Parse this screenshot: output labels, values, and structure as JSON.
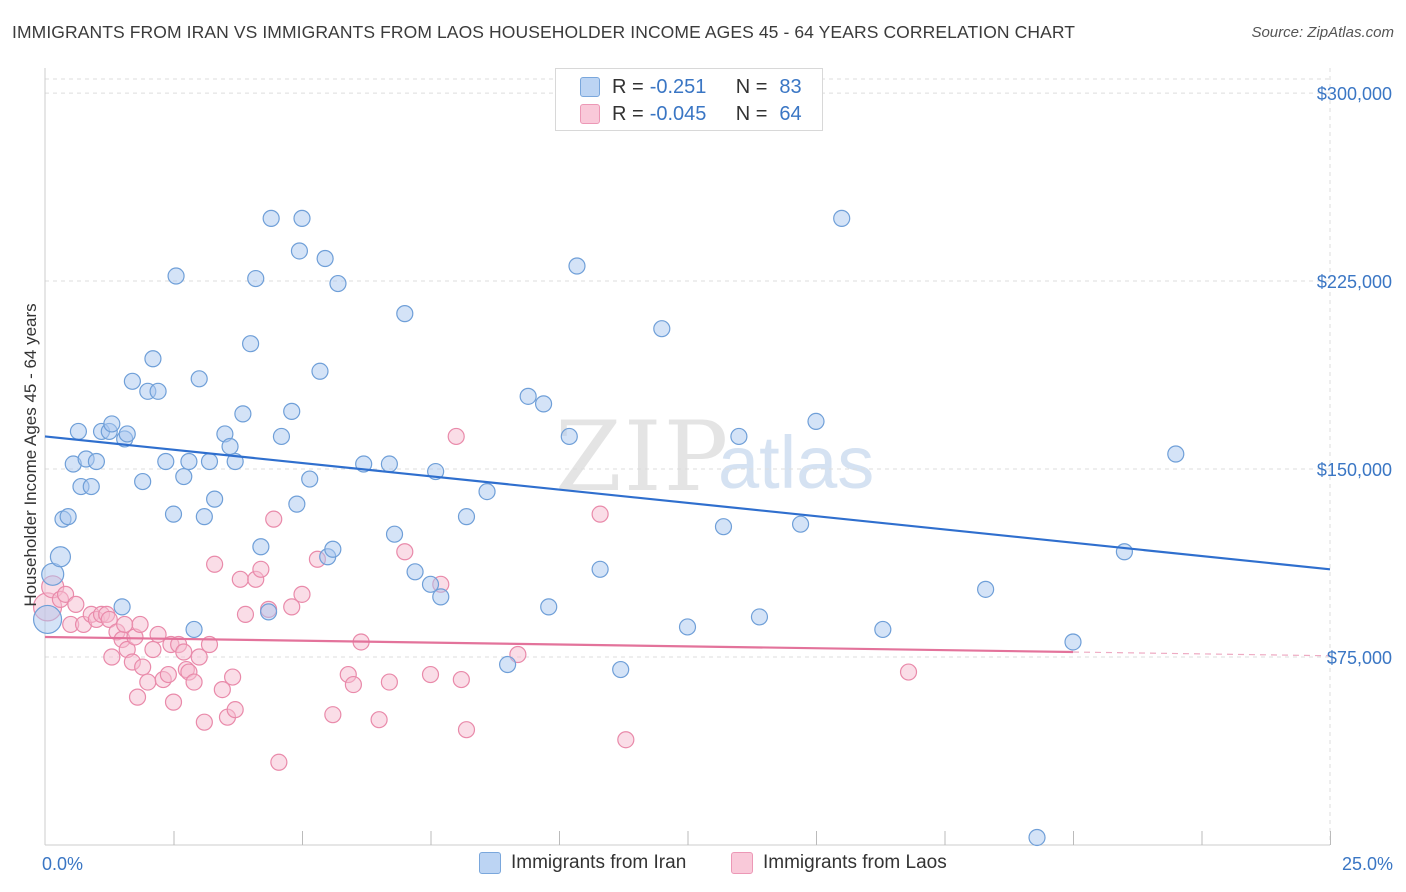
{
  "title": "IMMIGRANTS FROM IRAN VS IMMIGRANTS FROM LAOS HOUSEHOLDER INCOME AGES 45 - 64 YEARS CORRELATION CHART",
  "source": "Source: ZipAtlas.com",
  "watermark": {
    "zip": "ZIP",
    "atlas": "atlas"
  },
  "colors": {
    "iran_fill": "#aac8ef",
    "iran_stroke": "#6f9fd8",
    "iran_line": "#2f6fce",
    "laos_fill": "#f6bcd0",
    "laos_stroke": "#e98aaa",
    "laos_line": "#e3739b",
    "axis_text": "#3a76c4",
    "grid": "#dddddd"
  },
  "legend": {
    "iran": {
      "r_label": "R =",
      "r_value": "-0.251",
      "n_label": "N =",
      "n_value": "83"
    },
    "laos": {
      "r_label": "R =",
      "r_value": "-0.045",
      "n_label": "N =",
      "n_value": "64"
    }
  },
  "bottom_legend": {
    "iran": "Immigrants from Iran",
    "laos": "Immigrants from Laos"
  },
  "chart_data": {
    "type": "scatter",
    "xlabel": "",
    "ylabel": "Householder Income Ages 45 - 64 years",
    "xlim": [
      0,
      25
    ],
    "ylim": [
      0,
      310000
    ],
    "x_tick_labels": [
      {
        "value": 0,
        "label": "0.0%"
      },
      {
        "value": 25,
        "label": "25.0%"
      }
    ],
    "y_ticks": [
      {
        "value": 75000,
        "label": "$75,000"
      },
      {
        "value": 150000,
        "label": "$150,000"
      },
      {
        "value": 225000,
        "label": "$225,000"
      },
      {
        "value": 300000,
        "label": "$300,000"
      }
    ],
    "grid": true,
    "legend_position": "top-center",
    "series": [
      {
        "name": "Immigrants from Iran",
        "trend": {
          "x": [
            0,
            25
          ],
          "y": [
            163000,
            110000
          ]
        },
        "points": [
          [
            0.05,
            90000,
            14
          ],
          [
            0.15,
            108000,
            11
          ],
          [
            0.3,
            115000,
            10
          ],
          [
            0.35,
            130000,
            8
          ],
          [
            0.45,
            131000,
            8
          ],
          [
            0.55,
            152000,
            8
          ],
          [
            0.65,
            165000,
            8
          ],
          [
            0.7,
            143000,
            8
          ],
          [
            0.8,
            154000,
            8
          ],
          [
            0.9,
            143000,
            8
          ],
          [
            1.0,
            153000,
            8
          ],
          [
            1.1,
            165000,
            8
          ],
          [
            1.25,
            165000,
            8
          ],
          [
            1.3,
            168000,
            8
          ],
          [
            1.5,
            95000,
            8
          ],
          [
            1.55,
            162000,
            8
          ],
          [
            1.6,
            164000,
            8
          ],
          [
            1.7,
            185000,
            8
          ],
          [
            1.9,
            145000,
            8
          ],
          [
            2.0,
            181000,
            8
          ],
          [
            2.1,
            194000,
            8
          ],
          [
            2.2,
            181000,
            8
          ],
          [
            2.35,
            153000,
            8
          ],
          [
            2.5,
            132000,
            8
          ],
          [
            2.55,
            227000,
            8
          ],
          [
            2.7,
            147000,
            8
          ],
          [
            2.8,
            153000,
            8
          ],
          [
            2.9,
            86000,
            8
          ],
          [
            3.0,
            186000,
            8
          ],
          [
            3.1,
            131000,
            8
          ],
          [
            3.2,
            153000,
            8
          ],
          [
            3.3,
            138000,
            8
          ],
          [
            3.5,
            164000,
            8
          ],
          [
            3.6,
            159000,
            8
          ],
          [
            3.7,
            153000,
            8
          ],
          [
            3.85,
            172000,
            8
          ],
          [
            4.0,
            200000,
            8
          ],
          [
            4.1,
            226000,
            8
          ],
          [
            4.2,
            119000,
            8
          ],
          [
            4.35,
            93000,
            8
          ],
          [
            4.4,
            250000,
            8
          ],
          [
            4.6,
            163000,
            8
          ],
          [
            4.8,
            173000,
            8
          ],
          [
            4.9,
            136000,
            8
          ],
          [
            4.95,
            237000,
            8
          ],
          [
            5.0,
            250000,
            8
          ],
          [
            5.15,
            146000,
            8
          ],
          [
            5.35,
            189000,
            8
          ],
          [
            5.45,
            234000,
            8
          ],
          [
            5.5,
            115000,
            8
          ],
          [
            5.6,
            118000,
            8
          ],
          [
            5.7,
            224000,
            8
          ],
          [
            6.2,
            152000,
            8
          ],
          [
            6.7,
            152000,
            8
          ],
          [
            6.8,
            124000,
            8
          ],
          [
            7.0,
            212000,
            8
          ],
          [
            7.2,
            109000,
            8
          ],
          [
            7.5,
            104000,
            8
          ],
          [
            7.6,
            149000,
            8
          ],
          [
            7.7,
            99000,
            8
          ],
          [
            8.2,
            131000,
            8
          ],
          [
            8.6,
            141000,
            8
          ],
          [
            9.0,
            72000,
            8
          ],
          [
            9.4,
            179000,
            8
          ],
          [
            9.7,
            176000,
            8
          ],
          [
            9.8,
            95000,
            8
          ],
          [
            10.2,
            163000,
            8
          ],
          [
            10.35,
            231000,
            8
          ],
          [
            10.8,
            110000,
            8
          ],
          [
            11.2,
            70000,
            8
          ],
          [
            12.0,
            206000,
            8
          ],
          [
            12.5,
            87000,
            8
          ],
          [
            13.2,
            127000,
            8
          ],
          [
            13.5,
            163000,
            8
          ],
          [
            13.9,
            91000,
            8
          ],
          [
            14.7,
            128000,
            8
          ],
          [
            15.0,
            169000,
            8
          ],
          [
            15.5,
            250000,
            8
          ],
          [
            16.3,
            86000,
            8
          ],
          [
            18.3,
            102000,
            8
          ],
          [
            19.3,
            3000,
            8
          ],
          [
            20.0,
            81000,
            8
          ],
          [
            21.0,
            117000,
            8
          ],
          [
            22.0,
            156000,
            8
          ]
        ]
      },
      {
        "name": "Immigrants from Laos",
        "trend": {
          "x": [
            0,
            20.0
          ],
          "y": [
            83000,
            77000
          ]
        },
        "trend_dashed": {
          "x": [
            20.0,
            25
          ],
          "y": [
            77000,
            75500
          ]
        },
        "points": [
          [
            0.05,
            95000,
            14
          ],
          [
            0.15,
            103000,
            11
          ],
          [
            0.3,
            98000,
            8
          ],
          [
            0.4,
            100000,
            8
          ],
          [
            0.5,
            88000,
            8
          ],
          [
            0.6,
            96000,
            8
          ],
          [
            0.75,
            88000,
            8
          ],
          [
            0.9,
            92000,
            8
          ],
          [
            1.0,
            90000,
            8
          ],
          [
            1.1,
            92000,
            8
          ],
          [
            1.2,
            92000,
            8
          ],
          [
            1.25,
            90000,
            8
          ],
          [
            1.3,
            75000,
            8
          ],
          [
            1.4,
            85000,
            8
          ],
          [
            1.5,
            82000,
            8
          ],
          [
            1.55,
            88000,
            8
          ],
          [
            1.6,
            78000,
            8
          ],
          [
            1.7,
            73000,
            8
          ],
          [
            1.75,
            83000,
            8
          ],
          [
            1.8,
            59000,
            8
          ],
          [
            1.85,
            88000,
            8
          ],
          [
            1.9,
            71000,
            8
          ],
          [
            2.0,
            65000,
            8
          ],
          [
            2.1,
            78000,
            8
          ],
          [
            2.2,
            84000,
            8
          ],
          [
            2.3,
            66000,
            8
          ],
          [
            2.4,
            68000,
            8
          ],
          [
            2.45,
            80000,
            8
          ],
          [
            2.5,
            57000,
            8
          ],
          [
            2.6,
            80000,
            8
          ],
          [
            2.7,
            77000,
            8
          ],
          [
            2.75,
            70000,
            8
          ],
          [
            2.8,
            69000,
            8
          ],
          [
            2.9,
            65000,
            8
          ],
          [
            3.0,
            75000,
            8
          ],
          [
            3.1,
            49000,
            8
          ],
          [
            3.2,
            80000,
            8
          ],
          [
            3.3,
            112000,
            8
          ],
          [
            3.45,
            62000,
            8
          ],
          [
            3.55,
            51000,
            8
          ],
          [
            3.65,
            67000,
            8
          ],
          [
            3.7,
            54000,
            8
          ],
          [
            3.8,
            106000,
            8
          ],
          [
            3.9,
            92000,
            8
          ],
          [
            4.1,
            106000,
            8
          ],
          [
            4.2,
            110000,
            8
          ],
          [
            4.35,
            94000,
            8
          ],
          [
            4.45,
            130000,
            8
          ],
          [
            4.55,
            33000,
            8
          ],
          [
            4.8,
            95000,
            8
          ],
          [
            5.0,
            100000,
            8
          ],
          [
            5.3,
            114000,
            8
          ],
          [
            5.6,
            52000,
            8
          ],
          [
            5.9,
            68000,
            8
          ],
          [
            6.0,
            64000,
            8
          ],
          [
            6.15,
            81000,
            8
          ],
          [
            6.5,
            50000,
            8
          ],
          [
            6.7,
            65000,
            8
          ],
          [
            7.0,
            117000,
            8
          ],
          [
            7.5,
            68000,
            8
          ],
          [
            7.7,
            104000,
            8
          ],
          [
            8.0,
            163000,
            8
          ],
          [
            8.1,
            66000,
            8
          ],
          [
            8.2,
            46000,
            8
          ],
          [
            9.2,
            76000,
            8
          ],
          [
            10.8,
            132000,
            8
          ],
          [
            11.3,
            42000,
            8
          ],
          [
            16.8,
            69000,
            8
          ]
        ]
      }
    ]
  }
}
